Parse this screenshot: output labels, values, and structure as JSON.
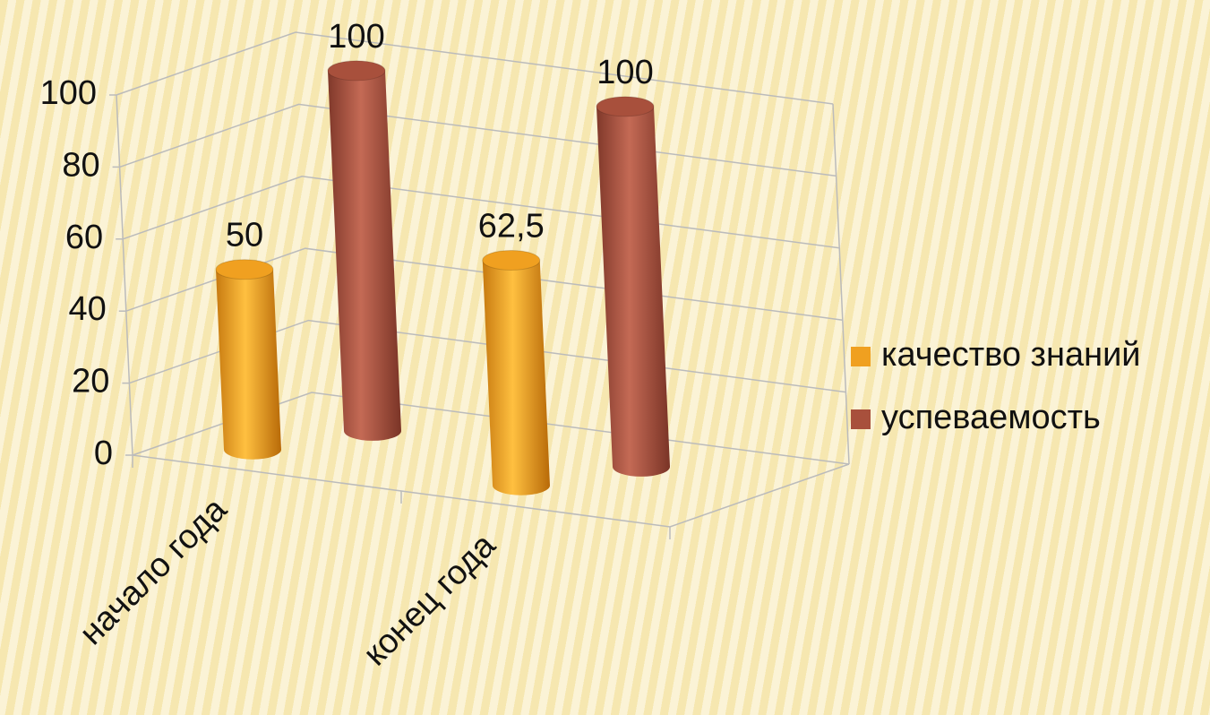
{
  "chart_data": {
    "type": "bar3d",
    "categories": [
      "начало года",
      "конец года"
    ],
    "series": [
      {
        "name": "качество знаний",
        "color": "#f0a020",
        "values": [
          50,
          62.5
        ],
        "value_labels": [
          "50",
          "62,5"
        ]
      },
      {
        "name": "успеваемость",
        "color": "#a8503c",
        "values": [
          100,
          100
        ],
        "value_labels": [
          "100",
          "100"
        ]
      }
    ],
    "ylim": [
      0,
      100
    ],
    "yticks": [
      0,
      20,
      40,
      60,
      80,
      100
    ],
    "grid": true,
    "legend": "right"
  }
}
